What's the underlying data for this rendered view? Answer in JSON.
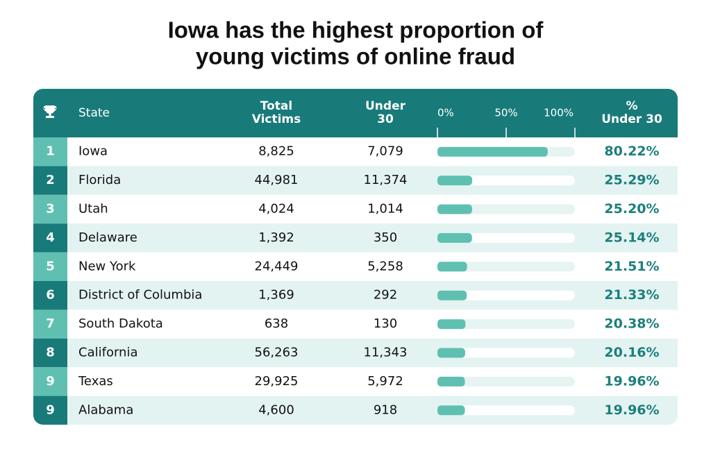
{
  "title": [
    "Iowa has the highest proportion of",
    "young victims of online fraud"
  ],
  "table": {
    "header": {
      "state": "State",
      "total_victims": [
        "Total",
        "Victims"
      ],
      "under_30": [
        "Under",
        "30"
      ],
      "pct_under_30": [
        "%",
        "Under 30"
      ]
    },
    "bar_scale": {
      "lim": [
        0,
        100
      ],
      "ticks": [
        {
          "value": 0,
          "label": "0%"
        },
        {
          "value": 50,
          "label": "50%"
        },
        {
          "value": 100,
          "label": "100%"
        }
      ]
    },
    "rows": [
      {
        "rank": "1",
        "state": "Iowa",
        "total": "8,825",
        "under_30": "7,079",
        "pct": 80.22,
        "pct_label": "80.22%"
      },
      {
        "rank": "2",
        "state": "Florida",
        "total": "44,981",
        "under_30": "11,374",
        "pct": 25.29,
        "pct_label": "25.29%"
      },
      {
        "rank": "3",
        "state": "Utah",
        "total": "4,024",
        "under_30": "1,014",
        "pct": 25.2,
        "pct_label": "25.20%"
      },
      {
        "rank": "4",
        "state": "Delaware",
        "total": "1,392",
        "under_30": "350",
        "pct": 25.14,
        "pct_label": "25.14%"
      },
      {
        "rank": "5",
        "state": "New York",
        "total": "24,449",
        "under_30": "5,258",
        "pct": 21.51,
        "pct_label": "21.51%"
      },
      {
        "rank": "6",
        "state": "District of Columbia",
        "total": "1,369",
        "under_30": "292",
        "pct": 21.33,
        "pct_label": "21.33%"
      },
      {
        "rank": "7",
        "state": "South Dakota",
        "total": "638",
        "under_30": "130",
        "pct": 20.38,
        "pct_label": "20.38%"
      },
      {
        "rank": "8",
        "state": "California",
        "total": "56,263",
        "under_30": "11,343",
        "pct": 20.16,
        "pct_label": "20.16%"
      },
      {
        "rank": "9",
        "state": "Texas",
        "total": "29,925",
        "under_30": "5,972",
        "pct": 19.96,
        "pct_label": "19.96%"
      },
      {
        "rank": "9",
        "state": "Alabama",
        "total": "4,600",
        "under_30": "918",
        "pct": 19.96,
        "pct_label": "19.96%"
      }
    ]
  }
}
